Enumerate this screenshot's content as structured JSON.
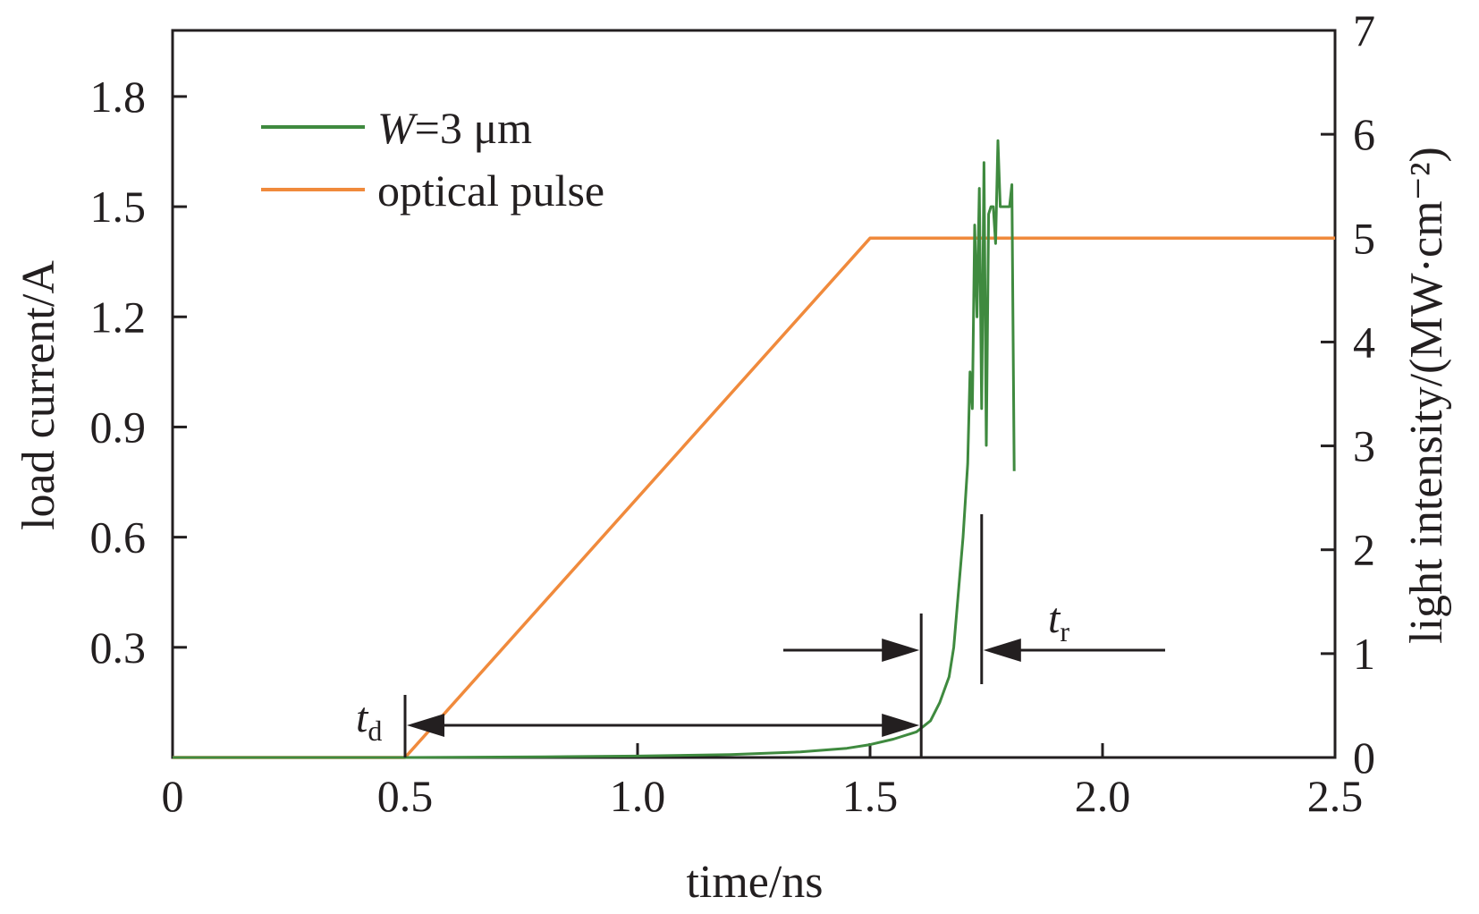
{
  "chart_data": {
    "type": "line",
    "xlabel": "time/ns",
    "ylabel": "load current/A",
    "ylabel_right": "light intensity/(MW·cm⁻²)",
    "xlim": [
      0,
      2.5
    ],
    "ylim": [
      0,
      1.98
    ],
    "ylim_right": [
      0,
      7
    ],
    "x_ticks": [
      "0",
      "0.5",
      "1.0",
      "1.5",
      "2.0",
      "2.5"
    ],
    "x_tick_values": [
      0,
      0.5,
      1.0,
      1.5,
      2.0,
      2.5
    ],
    "y_ticks": [
      "0.3",
      "0.6",
      "0.9",
      "1.2",
      "1.5",
      "1.8"
    ],
    "y_tick_values": [
      0.3,
      0.6,
      0.9,
      1.2,
      1.5,
      1.8
    ],
    "y_right_ticks": [
      "0",
      "1",
      "2",
      "3",
      "4",
      "5",
      "6",
      "7"
    ],
    "y_right_tick_values": [
      0,
      1,
      2,
      3,
      4,
      5,
      6,
      7
    ],
    "grid": false,
    "legend_position": "top-left",
    "legend": {
      "series1_italic": "W",
      "series1_rest": "=3 μm",
      "series2": "optical pulse"
    },
    "series": [
      {
        "name": "W=3 μm",
        "axis": "left",
        "color": "#3f8a3f",
        "x": [
          0,
          0.5,
          0.8,
          1.0,
          1.2,
          1.35,
          1.45,
          1.5,
          1.55,
          1.6,
          1.63,
          1.65,
          1.67,
          1.68,
          1.69,
          1.7,
          1.71,
          1.715,
          1.72,
          1.725,
          1.73,
          1.735,
          1.74,
          1.745,
          1.75,
          1.755,
          1.76,
          1.765,
          1.77,
          1.775,
          1.78,
          1.785,
          1.79,
          1.795,
          1.8,
          1.805,
          1.81
        ],
        "y": [
          0,
          0,
          0.002,
          0.004,
          0.008,
          0.015,
          0.025,
          0.035,
          0.05,
          0.07,
          0.1,
          0.15,
          0.22,
          0.3,
          0.45,
          0.6,
          0.8,
          1.05,
          0.95,
          1.45,
          1.2,
          1.55,
          0.95,
          1.62,
          0.85,
          1.48,
          1.5,
          1.5,
          1.4,
          1.68,
          1.5,
          1.5,
          1.5,
          1.5,
          1.5,
          1.56,
          0.78
        ]
      },
      {
        "name": "optical pulse",
        "axis": "right",
        "color": "#f08a3c",
        "x": [
          0,
          0.5,
          1.5,
          2.5
        ],
        "y": [
          0,
          0,
          5,
          5
        ]
      }
    ],
    "annotations": {
      "td_main": "t",
      "td_sub": "d",
      "tr_main": "t",
      "tr_sub": "r",
      "td_span": [
        0.5,
        1.61
      ],
      "tr_span": [
        1.61,
        1.74
      ]
    }
  }
}
